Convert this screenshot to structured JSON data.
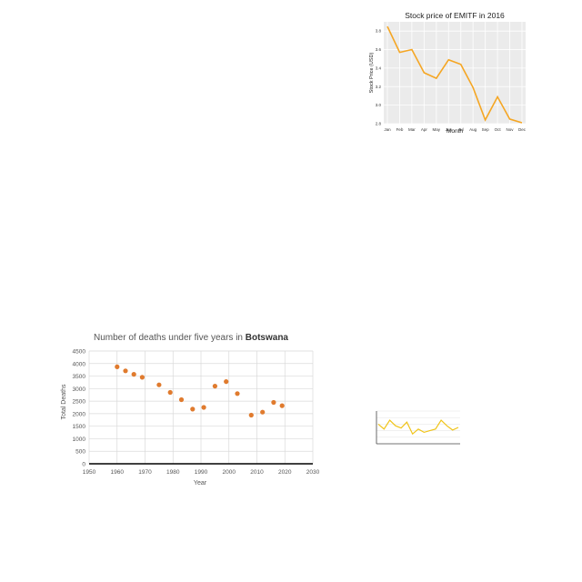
{
  "chart_data": [
    {
      "type": "line",
      "title": "Stock price of EMITF in 2016",
      "xlabel": "Month",
      "ylabel": "Stock Price (USD)",
      "categories": [
        "Jan",
        "Feb",
        "Mar",
        "Apr",
        "May",
        "Jun",
        "Jul",
        "Aug",
        "Sep",
        "Oct",
        "Nov",
        "Dec"
      ],
      "series": [
        {
          "values": [
            3.85,
            3.57,
            3.6,
            3.35,
            3.29,
            3.49,
            3.44,
            3.19,
            2.84,
            3.09,
            2.85,
            2.81
          ]
        }
      ],
      "ylim": [
        2.8,
        3.9
      ],
      "yticks": [
        "2.8",
        "3.0",
        "3.2",
        "3.4",
        "3.6",
        "3.8"
      ],
      "grid": true,
      "color": "#f5a623",
      "background": "#ebebeb"
    },
    {
      "type": "scatter",
      "title_prefix": "Number of deaths under five years in ",
      "title_bold": "Botswana",
      "xlabel": "Year",
      "ylabel": "Total Deaths",
      "x": [
        1960,
        1963,
        1966,
        1969,
        1975,
        1979,
        1983,
        1987,
        1991,
        1995,
        1999,
        2003,
        2008,
        2012,
        2016,
        2019
      ],
      "y": [
        3870,
        3710,
        3570,
        3450,
        3150,
        2850,
        2560,
        2180,
        2250,
        3100,
        3280,
        2800,
        1940,
        2060,
        2450,
        2320
      ],
      "xlim": [
        1950,
        2030
      ],
      "ylim": [
        0,
        4500
      ],
      "xticks": [
        "1950",
        "1960",
        "1970",
        "1980",
        "1990",
        "2000",
        "2010",
        "2020",
        "2030"
      ],
      "yticks": [
        "0",
        "500",
        "1000",
        "1500",
        "2000",
        "2500",
        "3000",
        "3500",
        "4000",
        "4500"
      ],
      "grid": true,
      "color": "#e07b2e"
    },
    {
      "type": "line",
      "series": [
        {
          "values": [
            0.6,
            0.45,
            0.72,
            0.55,
            0.48,
            0.66,
            0.3,
            0.45,
            0.35,
            0.4,
            0.45,
            0.72,
            0.55,
            0.42,
            0.5
          ]
        }
      ],
      "color": "#f0c419"
    }
  ]
}
